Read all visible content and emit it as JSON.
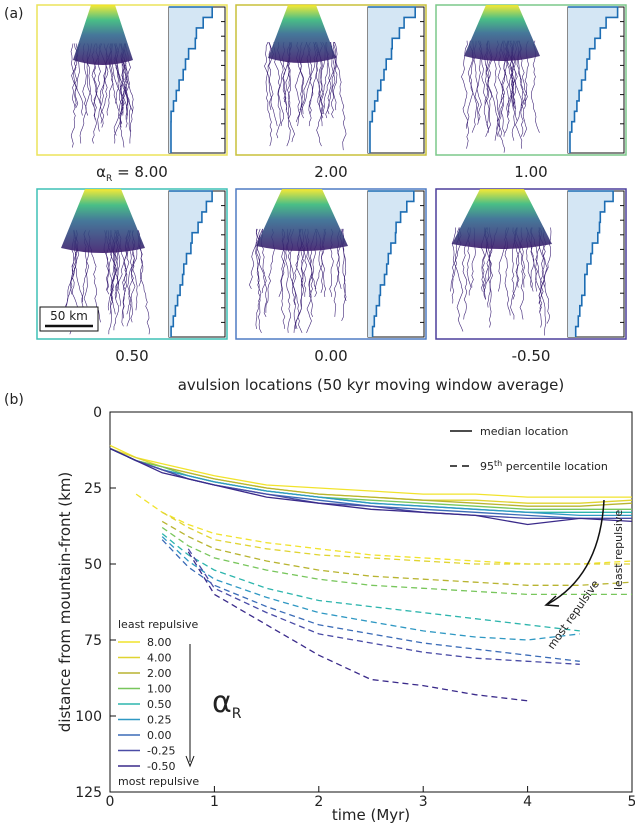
{
  "panel_a": {
    "label": "(a)",
    "alpha_symbol": "α",
    "alpha_sub": "R",
    "equals": " = ",
    "scale_bar": "50 km",
    "panels": [
      {
        "value": "8.00",
        "color": "#ece35a"
      },
      {
        "value": "2.00",
        "color": "#c9c13a"
      },
      {
        "value": "1.00",
        "color": "#7cc88a"
      },
      {
        "value": "0.50",
        "color": "#3fc0b6"
      },
      {
        "value": "0.00",
        "color": "#4f7cc4"
      },
      {
        "value": "-0.50",
        "color": "#4b3f9c"
      }
    ]
  },
  "chart_data": {
    "type": "line",
    "panel_label": "(b)",
    "title": "avulsion locations (50 kyr moving window average)",
    "x_label": "time (Myr)",
    "y_label": "distance from mountain-front (km)",
    "xlim": [
      0,
      5
    ],
    "xticks": [
      0,
      1,
      2,
      3,
      4,
      5
    ],
    "ylim": [
      0,
      125
    ],
    "yticks": [
      0,
      25,
      50,
      75,
      100,
      125
    ],
    "y_inverted": true,
    "x": [
      0,
      0.25,
      0.5,
      0.75,
      1,
      1.5,
      2,
      2.5,
      3,
      3.5,
      4,
      4.5,
      5
    ],
    "series": [
      {
        "name": "8.00",
        "color": "#f1e32c",
        "median": [
          11,
          15,
          17,
          19,
          21,
          24,
          25,
          26,
          27,
          27,
          28,
          28,
          28
        ],
        "percentile_95": [
          null,
          27,
          33,
          37,
          40,
          43,
          45,
          47,
          48,
          49,
          50,
          50,
          49
        ]
      },
      {
        "name": "4.00",
        "color": "#e0d431",
        "median": [
          12,
          15,
          18,
          20,
          22,
          25,
          27,
          28,
          29,
          29,
          30,
          30,
          29
        ],
        "percentile_95": [
          null,
          null,
          33,
          38,
          42,
          45,
          47,
          48,
          49,
          50,
          50,
          50,
          50
        ]
      },
      {
        "name": "2.00",
        "color": "#b8b430",
        "median": [
          12,
          16,
          18,
          20,
          22,
          25,
          27,
          28,
          29,
          30,
          31,
          31,
          30
        ],
        "percentile_95": [
          null,
          null,
          36,
          41,
          45,
          49,
          52,
          54,
          55,
          56,
          57,
          57,
          56
        ]
      },
      {
        "name": "1.00",
        "color": "#78c65c",
        "median": [
          12,
          16,
          18,
          21,
          23,
          26,
          28,
          29,
          30,
          31,
          32,
          32,
          32
        ],
        "percentile_95": [
          null,
          null,
          38,
          44,
          48,
          52,
          55,
          57,
          58,
          59,
          60,
          60,
          60
        ]
      },
      {
        "name": "0.50",
        "color": "#2db5ad",
        "median": [
          12,
          16,
          19,
          21,
          23,
          26,
          28,
          30,
          31,
          32,
          33,
          33,
          33
        ],
        "percentile_95": [
          null,
          null,
          40,
          47,
          52,
          58,
          62,
          64,
          66,
          68,
          70,
          72,
          null
        ]
      },
      {
        "name": "0.25",
        "color": "#2f98c3",
        "median": [
          12,
          16,
          19,
          21,
          23,
          26,
          28,
          30,
          31,
          32,
          33,
          34,
          34
        ],
        "percentile_95": [
          null,
          null,
          41,
          49,
          55,
          61,
          66,
          69,
          72,
          74,
          75,
          73,
          null
        ]
      },
      {
        "name": "0.00",
        "color": "#3b6cb7",
        "median": [
          12,
          16,
          19,
          22,
          24,
          27,
          29,
          31,
          32,
          33,
          34,
          35,
          35
        ],
        "percentile_95": [
          null,
          null,
          42,
          51,
          57,
          64,
          70,
          73,
          76,
          78,
          80,
          82,
          null
        ]
      },
      {
        "name": "-0.25",
        "color": "#4a4ca6",
        "median": [
          12,
          16,
          19,
          22,
          24,
          27,
          30,
          31,
          33,
          34,
          35,
          35,
          35
        ],
        "percentile_95": [
          null,
          null,
          null,
          45,
          58,
          66,
          73,
          76,
          79,
          81,
          82,
          83,
          null
        ]
      },
      {
        "name": "-0.50",
        "color": "#3a2a8a",
        "median": [
          12,
          16,
          20,
          22,
          24,
          28,
          30,
          32,
          33,
          34,
          37,
          35,
          36
        ],
        "percentile_95": [
          null,
          null,
          null,
          46,
          60,
          70,
          80,
          88,
          90,
          93,
          95,
          null,
          null
        ]
      }
    ],
    "legend": {
      "top": "least repulsive",
      "bottom": "most repulsive",
      "symbol": "α",
      "symbol_sub": "R"
    },
    "style_legend": {
      "solid": "median location",
      "dashed_pre": "95",
      "dashed_sup": "th",
      "dashed_post": " percentile location"
    },
    "arrow_annotation": {
      "top": "least repulsive",
      "bottom": "most repulsive"
    }
  }
}
